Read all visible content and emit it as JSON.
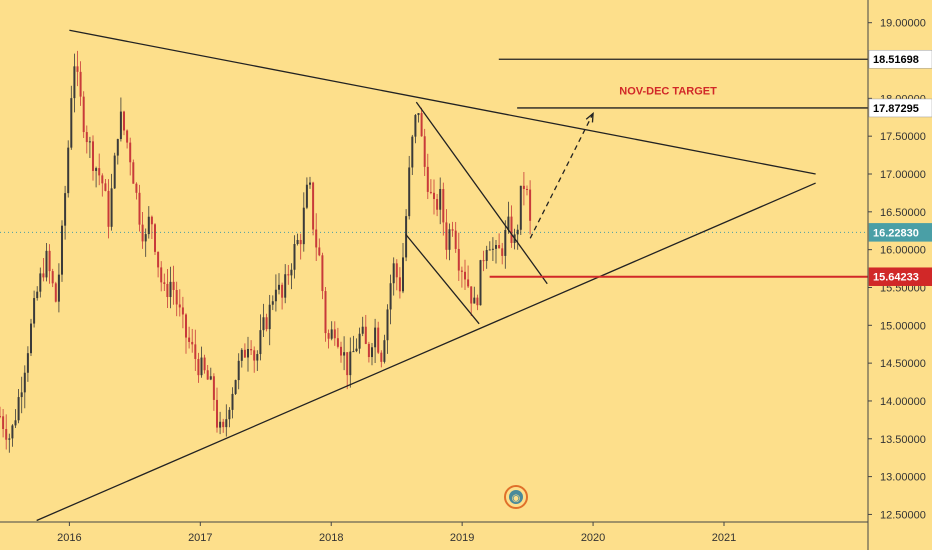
{
  "chart_data": {
    "type": "candlestick",
    "y_axis": {
      "range": [
        12.4,
        19.3
      ],
      "ticks": [
        "12.50000",
        "13.00000",
        "13.50000",
        "14.00000",
        "14.50000",
        "15.00000",
        "15.50000",
        "16.00000",
        "16.50000",
        "17.00000",
        "17.50000",
        "18.00000",
        "19.00000"
      ],
      "tick_values": [
        12.5,
        13.0,
        13.5,
        14.0,
        14.5,
        15.0,
        15.5,
        16.0,
        16.5,
        17.0,
        17.5,
        18.0,
        19.0
      ]
    },
    "x_axis": {
      "range": [
        2015.47,
        2022.1
      ],
      "ticks": [
        "2016",
        "2017",
        "2018",
        "2019",
        "2020",
        "2021"
      ],
      "tick_values": [
        2016.0,
        2017.0,
        2018.0,
        2019.0,
        2020.0,
        2021.0
      ]
    },
    "price_tags": [
      {
        "value": 18.51698,
        "label": "18.51698",
        "fill": "#ffffff",
        "text_color": "#000000"
      },
      {
        "value": 17.87295,
        "label": "17.87295",
        "fill": "#ffffff",
        "text_color": "#000000"
      },
      {
        "value": 16.2283,
        "label": "16.22830",
        "fill": "#4a9fa6",
        "text_color": "#ffffff"
      },
      {
        "value": 15.64233,
        "label": "15.64233",
        "fill": "#d12828",
        "text_color": "#ffffff"
      }
    ],
    "annotations": [
      {
        "text": "NOV-DEC TARGET",
        "x": 2020.2,
        "y": 18.05,
        "color": "#d12828"
      }
    ],
    "lines": [
      {
        "name": "triangle-upper-line",
        "x1": 2016.0,
        "y1": 18.9,
        "x2": 2021.7,
        "y2": 17.0,
        "color": "#222222",
        "dash": false
      },
      {
        "name": "triangle-lower-line",
        "x1": 2015.75,
        "y1": 12.42,
        "x2": 2021.7,
        "y2": 16.88,
        "color": "#222222",
        "dash": false
      },
      {
        "name": "channel-upper-line",
        "x1": 2018.65,
        "y1": 17.95,
        "x2": 2019.65,
        "y2": 15.55,
        "color": "#222222",
        "dash": false
      },
      {
        "name": "channel-lower-line",
        "x1": 2018.57,
        "y1": 16.2,
        "x2": 2019.13,
        "y2": 15.02,
        "color": "#222222",
        "dash": false
      },
      {
        "name": "resistance-1851-line",
        "x1": 2019.28,
        "y1": 18.51698,
        "x2": 2022.1,
        "y2": 18.51698,
        "color": "#222222",
        "dash": false
      },
      {
        "name": "target-1787-line",
        "x1": 2019.42,
        "y1": 17.87295,
        "x2": 2022.1,
        "y2": 17.87295,
        "color": "#222222",
        "dash": false
      },
      {
        "name": "support-1564-line",
        "x1": 2019.21,
        "y1": 15.64233,
        "x2": 2022.1,
        "y2": 15.64233,
        "color": "#d12828",
        "dash": false
      },
      {
        "name": "projection-arrow-line",
        "x1": 2019.52,
        "y1": 16.15,
        "x2": 2020.0,
        "y2": 17.8,
        "color": "#222222",
        "dash": true
      }
    ],
    "current_price_line": {
      "value": 16.2283,
      "color": "#4a9fa6"
    },
    "price_path": [
      [
        2015.47,
        13.8
      ],
      [
        2015.55,
        13.5
      ],
      [
        2015.62,
        14.1
      ],
      [
        2015.7,
        14.9
      ],
      [
        2015.75,
        15.4
      ],
      [
        2015.82,
        15.9
      ],
      [
        2015.9,
        15.3
      ],
      [
        2015.95,
        16.3
      ],
      [
        2016.0,
        17.6
      ],
      [
        2016.03,
        18.6
      ],
      [
        2016.07,
        18.1
      ],
      [
        2016.12,
        17.6
      ],
      [
        2016.18,
        17.2
      ],
      [
        2016.25,
        16.9
      ],
      [
        2016.3,
        16.4
      ],
      [
        2016.35,
        17.2
      ],
      [
        2016.38,
        17.8
      ],
      [
        2016.43,
        17.5
      ],
      [
        2016.47,
        17.2
      ],
      [
        2016.53,
        16.5
      ],
      [
        2016.58,
        16.1
      ],
      [
        2016.62,
        16.5
      ],
      [
        2016.68,
        15.8
      ],
      [
        2016.72,
        15.4
      ],
      [
        2016.78,
        15.6
      ],
      [
        2016.82,
        15.3
      ],
      [
        2016.88,
        14.9
      ],
      [
        2016.93,
        14.7
      ],
      [
        2016.98,
        14.5
      ],
      [
        2017.05,
        14.3
      ],
      [
        2017.1,
        14.1
      ],
      [
        2017.13,
        13.7
      ],
      [
        2017.17,
        13.5
      ],
      [
        2017.22,
        14.0
      ],
      [
        2017.28,
        14.4
      ],
      [
        2017.33,
        14.6
      ],
      [
        2017.38,
        14.9
      ],
      [
        2017.42,
        14.5
      ],
      [
        2017.47,
        14.9
      ],
      [
        2017.53,
        15.2
      ],
      [
        2017.58,
        15.6
      ],
      [
        2017.62,
        15.3
      ],
      [
        2017.67,
        15.7
      ],
      [
        2017.72,
        16.0
      ],
      [
        2017.77,
        16.2
      ],
      [
        2017.8,
        16.6
      ],
      [
        2017.83,
        16.9
      ],
      [
        2017.87,
        16.2
      ],
      [
        2017.92,
        15.8
      ],
      [
        2017.95,
        15.0
      ],
      [
        2017.98,
        14.8
      ],
      [
        2018.03,
        15.0
      ],
      [
        2018.08,
        14.7
      ],
      [
        2018.13,
        14.4
      ],
      [
        2018.18,
        14.7
      ],
      [
        2018.23,
        14.9
      ],
      [
        2018.28,
        14.6
      ],
      [
        2018.33,
        15.0
      ],
      [
        2018.38,
        14.6
      ],
      [
        2018.42,
        15.1
      ],
      [
        2018.47,
        15.8
      ],
      [
        2018.53,
        15.5
      ],
      [
        2018.57,
        16.4
      ],
      [
        2018.6,
        17.1
      ],
      [
        2018.63,
        17.6
      ],
      [
        2018.67,
        17.9
      ],
      [
        2018.7,
        17.2
      ],
      [
        2018.74,
        16.9
      ],
      [
        2018.78,
        16.5
      ],
      [
        2018.83,
        16.7
      ],
      [
        2018.88,
        16.1
      ],
      [
        2018.93,
        16.4
      ],
      [
        2018.97,
        15.9
      ],
      [
        2019.02,
        15.7
      ],
      [
        2019.07,
        15.4
      ],
      [
        2019.1,
        15.2
      ],
      [
        2019.13,
        15.6
      ],
      [
        2019.17,
        16.0
      ],
      [
        2019.2,
        16.2
      ],
      [
        2019.25,
        15.9
      ],
      [
        2019.3,
        16.0
      ],
      [
        2019.35,
        16.3
      ],
      [
        2019.4,
        16.1
      ],
      [
        2019.43,
        16.4
      ],
      [
        2019.46,
        16.9
      ],
      [
        2019.49,
        16.8
      ],
      [
        2019.52,
        16.3
      ]
    ]
  },
  "logo": {
    "symbol": "◉"
  }
}
